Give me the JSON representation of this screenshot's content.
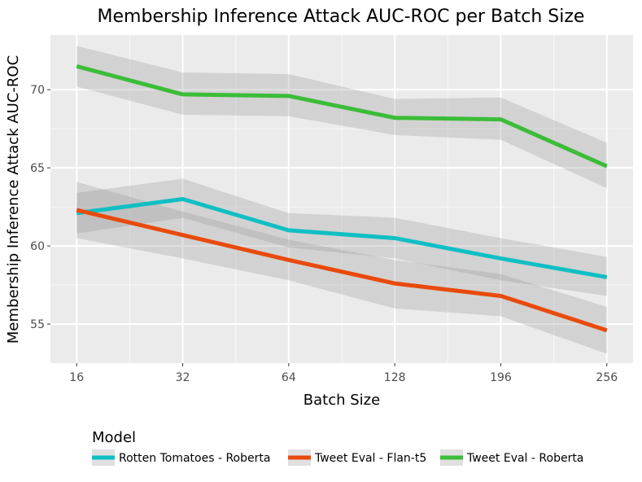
{
  "chart_data": {
    "type": "line",
    "title": "Membership Inference Attack AUC-ROC per Batch Size",
    "xlabel": "Batch Size",
    "ylabel": "Membership Inference Attack AUC-ROC",
    "categories": [
      "16",
      "32",
      "64",
      "128",
      "196",
      "256"
    ],
    "ylim": [
      52.5,
      73.5
    ],
    "yticks": [
      55,
      60,
      65,
      70
    ],
    "grid": true,
    "legend": {
      "title": "Model",
      "placement": "bottom"
    },
    "series": [
      {
        "name": "Rotten Tomatoes - Roberta",
        "color": "#10bfc4",
        "values": [
          62.1,
          63.0,
          61.0,
          60.5,
          59.2,
          58.0
        ],
        "lower": [
          60.8,
          61.8,
          59.9,
          59.2,
          57.8,
          56.8
        ],
        "upper": [
          63.4,
          64.3,
          62.1,
          61.8,
          60.5,
          59.3
        ]
      },
      {
        "name": "Tweet Eval - Flan-t5",
        "color": "#e84a0c",
        "values": [
          62.3,
          60.7,
          59.1,
          57.6,
          56.8,
          54.6
        ],
        "lower": [
          60.5,
          59.2,
          57.8,
          56.0,
          55.5,
          53.1
        ],
        "upper": [
          64.1,
          62.2,
          60.4,
          59.1,
          58.2,
          56.1
        ]
      },
      {
        "name": "Tweet Eval - Roberta",
        "color": "#3bbd38",
        "values": [
          71.5,
          69.7,
          69.6,
          68.2,
          68.1,
          65.1
        ],
        "lower": [
          70.2,
          68.4,
          68.3,
          67.1,
          66.8,
          63.7
        ],
        "upper": [
          72.8,
          71.1,
          71.0,
          69.4,
          69.5,
          66.6
        ]
      }
    ]
  }
}
